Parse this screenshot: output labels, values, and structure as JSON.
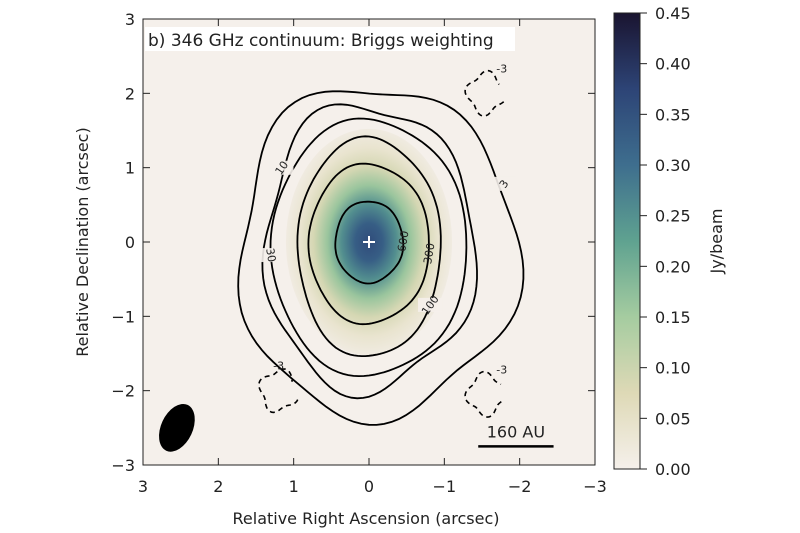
{
  "chart_data": {
    "type": "heatmap",
    "title": "b) 346 GHz continuum: Briggs weighting",
    "xlabel": "Relative Right Ascension (arcsec)",
    "ylabel": "Relative Declination (arcsec)",
    "xlim": [
      3,
      -3
    ],
    "ylim": [
      -3,
      3
    ],
    "x_ticks": [
      3,
      2,
      1,
      0,
      -1,
      -2,
      -3
    ],
    "x_tick_labels": [
      "3",
      "2",
      "1",
      "0",
      "−1",
      "−2",
      "−3"
    ],
    "y_ticks": [
      3,
      2,
      1,
      0,
      -1,
      -2,
      -3
    ],
    "y_tick_labels": [
      "3",
      "2",
      "1",
      "0",
      "−1",
      "−2",
      "−3"
    ],
    "colorbar": {
      "label": "Jy/beam",
      "range": [
        0.0,
        0.45
      ],
      "ticks": [
        0.0,
        0.05,
        0.1,
        0.15,
        0.2,
        0.25,
        0.3,
        0.35,
        0.4,
        0.45
      ],
      "tick_labels": [
        "0.00",
        "0.05",
        "0.10",
        "0.15",
        "0.20",
        "0.25",
        "0.30",
        "0.35",
        "0.40",
        "0.45"
      ],
      "colormap": [
        "#f5f0eb",
        "#ded9b6",
        "#a5cca0",
        "#5fa290",
        "#3e6e8e",
        "#2d4476",
        "#1a1430"
      ]
    },
    "emission": {
      "peak_jy_per_beam": 0.36,
      "center": [
        0,
        0
      ],
      "fwhm_arcsec": [
        1.05,
        1.45
      ]
    },
    "contours": [
      {
        "level": 3,
        "label": "3",
        "style": "solid",
        "ra_extent": [
          1.75,
          -1.95
        ],
        "dec_extent": [
          -2.35,
          2.1
        ]
      },
      {
        "level": 10,
        "label": "10",
        "style": "solid",
        "ra_extent": [
          1.4,
          -1.4
        ],
        "dec_extent": [
          -2.0,
          1.85
        ]
      },
      {
        "level": 30,
        "label": "30",
        "style": "solid",
        "ra_extent": [
          1.3,
          -1.3
        ],
        "dec_extent": [
          -1.8,
          1.65
        ]
      },
      {
        "level": 100,
        "label": "100",
        "style": "solid",
        "ra_extent": [
          0.95,
          -0.95
        ],
        "dec_extent": [
          -1.55,
          1.4
        ]
      },
      {
        "level": 300,
        "label": "300",
        "style": "solid",
        "ra_extent": [
          0.8,
          -0.8
        ],
        "dec_extent": [
          -1.1,
          1.05
        ]
      },
      {
        "level": 600,
        "label": "600",
        "style": "solid",
        "ra_extent": [
          0.45,
          -0.45
        ],
        "dec_extent": [
          -0.55,
          0.55
        ]
      },
      {
        "level": -3,
        "label": "-3",
        "style": "dashed",
        "center": [
          1.2,
          -2.0
        ]
      },
      {
        "level": -3,
        "label": "-3",
        "style": "dashed",
        "center": [
          -1.55,
          2.0
        ]
      },
      {
        "level": -3,
        "label": "-3",
        "style": "dashed",
        "center": [
          -1.55,
          -2.05
        ]
      }
    ],
    "marker": {
      "symbol": "+",
      "ra": 0,
      "dec": 0,
      "color": "#ffffff"
    },
    "beam": {
      "center": [
        2.55,
        -2.5
      ],
      "major_arcsec": 0.68,
      "minor_arcsec": 0.42,
      "pa_deg": 25,
      "color": "#000000"
    },
    "scale_bar": {
      "label": "160 AU",
      "ra_range": [
        -1.45,
        -2.45
      ],
      "dec": -2.75
    }
  }
}
